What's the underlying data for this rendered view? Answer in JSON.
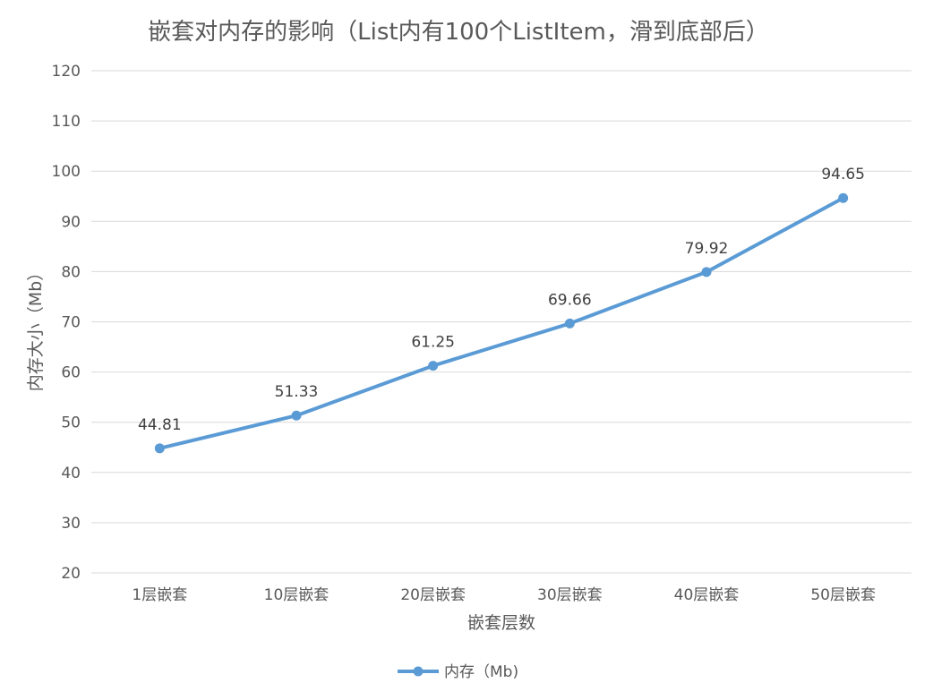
{
  "chart_data": {
    "type": "line",
    "title": "嵌套对内存的影响（List内有100个ListItem，滑到底部后）",
    "xlabel": "嵌套层数",
    "ylabel": "内存大小（Mb）",
    "categories": [
      "1层嵌套",
      "10层嵌套",
      "20层嵌套",
      "30层嵌套",
      "40层嵌套",
      "50层嵌套"
    ],
    "series": [
      {
        "name": "内存（Mb)",
        "values": [
          44.81,
          51.33,
          61.25,
          69.66,
          79.92,
          94.65
        ],
        "labels": [
          "44.81",
          "51.33",
          "61.25",
          "69.66",
          "79.92",
          "94.65"
        ],
        "color": "#5B9BD5"
      }
    ],
    "ylim": [
      20,
      120
    ],
    "yticks": [
      20,
      30,
      40,
      50,
      60,
      70,
      80,
      90,
      100,
      110,
      120
    ],
    "grid": "horizontal",
    "legend": "bottom-center",
    "gridline_color": "#d9d9d9"
  }
}
